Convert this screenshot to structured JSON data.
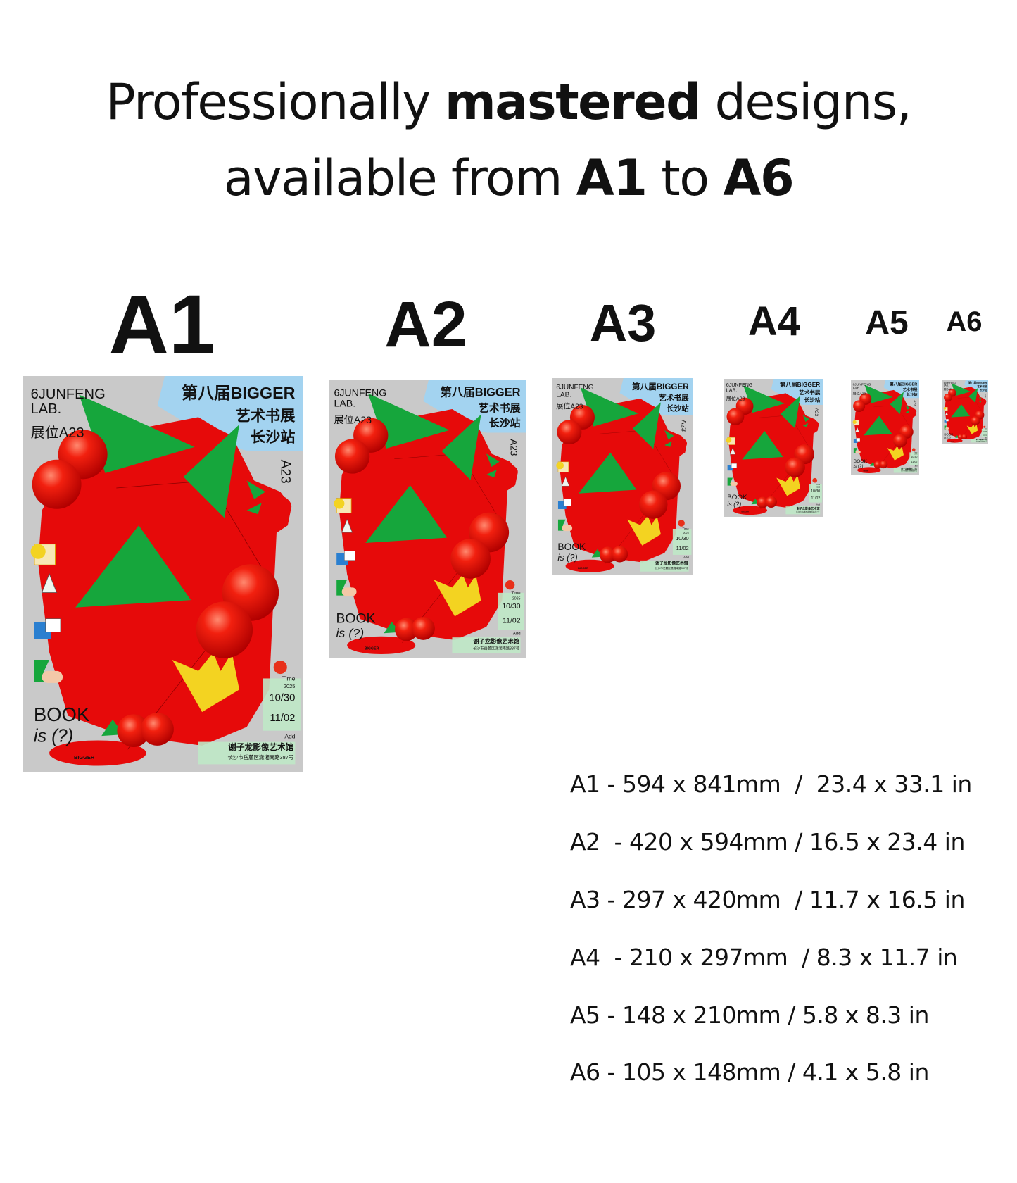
{
  "headline": {
    "line1_pre": "Professionally ",
    "line1_bold": "mastered",
    "line1_post": " designs,",
    "line2_pre": "available from ",
    "line2_bold1": "A1",
    "line2_mid": " to ",
    "line2_bold2": "A6"
  },
  "sizes": [
    {
      "label": "A1",
      "spec": "A1 - 594 x 841mm  /  23.4 x 33.1 in"
    },
    {
      "label": "A2",
      "spec": "A2  - 420 x 594mm / 16.5 x 23.4 in"
    },
    {
      "label": "A3",
      "spec": "A3 - 297 x 420mm  / 11.7 x 16.5 in"
    },
    {
      "label": "A4",
      "spec": "A4  - 210 x 297mm  / 8.3 x 11.7 in"
    },
    {
      "label": "A5",
      "spec": "A5 - 148 x 210mm / 5.8 x 8.3 in"
    },
    {
      "label": "A6",
      "spec": "A6 - 105 x 148mm / 4.1 x 5.8 in"
    }
  ],
  "poster": {
    "brand1": "6JUNFENG",
    "brand2": "LAB.",
    "booth": "展位A23",
    "title1": "第八届BIGGER",
    "title2": "艺术书展",
    "title3": "长沙站",
    "booth_code": "A23",
    "time_label": "Time",
    "year": "2025",
    "date_start": "10/30",
    "date_end": "11/02",
    "add_label": "Add",
    "venue": "谢子龙影像艺术馆",
    "address": "长沙市岳麓区潇湘南路387号",
    "book": "BOOK",
    "is_q": "is (?)",
    "partner": "BIGGER",
    "colors": {
      "background": "#c9c9c9",
      "red": "#e60a0a",
      "green": "#16a63c",
      "blue": "#a3d3f0",
      "yellow": "#f3d321",
      "mint": "#bfe8c6"
    }
  }
}
